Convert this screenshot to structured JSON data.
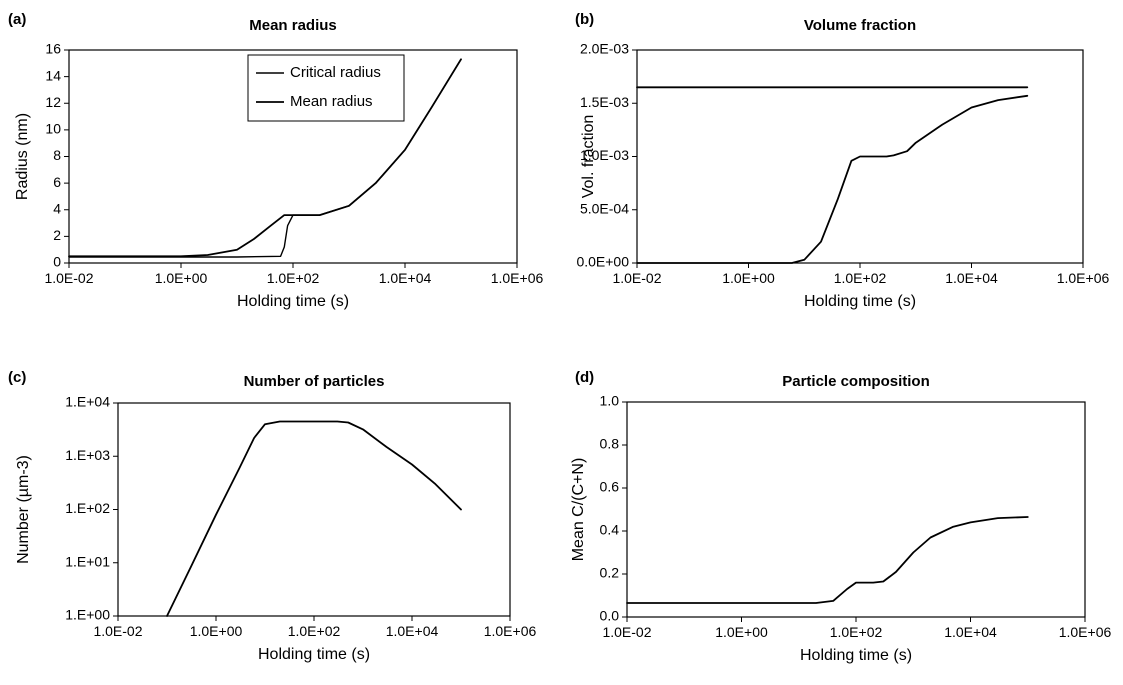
{
  "chart_data": [
    {
      "panel": "(a)",
      "type": "line",
      "title": "Mean radius",
      "xlabel": "Holding time (s)",
      "ylabel": "Radius (nm)",
      "xscale": "log",
      "xlim": [
        0.01,
        1000000
      ],
      "ylim": [
        0,
        16
      ],
      "x_ticks": [
        0.01,
        1,
        100,
        10000,
        1000000
      ],
      "x_tick_labels": [
        "1.0E-02",
        "1.0E+00",
        "1.0E+02",
        "1.0E+04",
        "1.0E+06"
      ],
      "y_ticks": [
        0,
        2,
        4,
        6,
        8,
        10,
        12,
        14,
        16
      ],
      "y_tick_labels": [
        "0",
        "2",
        "4",
        "6",
        "8",
        "10",
        "12",
        "14",
        "16"
      ],
      "grid": false,
      "legend_position": "top-center",
      "series": [
        {
          "name": "Critical radius",
          "x": [
            0.01,
            10,
            60,
            70,
            80,
            100,
            300,
            1000,
            3000,
            10000,
            30000,
            100000
          ],
          "y": [
            0.45,
            0.45,
            0.5,
            1.2,
            2.8,
            3.6,
            3.6,
            4.3,
            6.0,
            8.5,
            11.7,
            15.3
          ]
        },
        {
          "name": "Mean radius",
          "x": [
            0.01,
            1,
            3,
            10,
            20,
            40,
            70,
            100,
            300,
            1000,
            3000,
            10000,
            30000,
            100000
          ],
          "y": [
            0.5,
            0.5,
            0.6,
            1.0,
            1.8,
            2.8,
            3.6,
            3.6,
            3.6,
            4.3,
            6.0,
            8.5,
            11.7,
            15.3
          ]
        }
      ]
    },
    {
      "panel": "(b)",
      "type": "line",
      "title": "Volume fraction",
      "xlabel": "Holding time (s)",
      "ylabel": "Vol. fraction",
      "xscale": "log",
      "xlim": [
        0.01,
        1000000
      ],
      "ylim": [
        0,
        0.002
      ],
      "x_ticks": [
        0.01,
        1,
        100,
        10000,
        1000000
      ],
      "x_tick_labels": [
        "1.0E-02",
        "1.0E+00",
        "1.0E+02",
        "1.0E+04",
        "1.0E+06"
      ],
      "y_ticks": [
        0,
        0.0005,
        0.001,
        0.0015,
        0.002
      ],
      "y_tick_labels": [
        "0.0E+00",
        "5.0E-04",
        "1.0E-03",
        "1.5E-03",
        "2.0E-03"
      ],
      "grid": false,
      "series": [
        {
          "x": [
            0.01,
            100000
          ],
          "y": [
            0.00165,
            0.00165
          ]
        },
        {
          "x": [
            0.01,
            6,
            10,
            20,
            40,
            70,
            100,
            200,
            300,
            400,
            700,
            1000,
            3000,
            10000,
            30000,
            100000
          ],
          "y": [
            0,
            0,
            3e-05,
            0.0002,
            0.0006,
            0.00096,
            0.001,
            0.001,
            0.001,
            0.00101,
            0.00105,
            0.00113,
            0.0013,
            0.00146,
            0.00153,
            0.00157
          ]
        }
      ]
    },
    {
      "panel": "(c)",
      "type": "line",
      "title": "Number of particles",
      "xlabel": "Holding time (s)",
      "ylabel": "Number (µm-3)",
      "xscale": "log",
      "yscale": "log",
      "xlim": [
        0.01,
        1000000
      ],
      "ylim": [
        1,
        10000
      ],
      "x_ticks": [
        0.01,
        1,
        100,
        10000,
        1000000
      ],
      "x_tick_labels": [
        "1.0E-02",
        "1.0E+00",
        "1.0E+02",
        "1.0E+04",
        "1.0E+06"
      ],
      "y_ticks": [
        1,
        10,
        100,
        1000,
        10000
      ],
      "y_tick_labels": [
        "1.E+00",
        "1.E+01",
        "1.E+02",
        "1.E+03",
        "1.E+04"
      ],
      "grid": false,
      "series": [
        {
          "x": [
            0.1,
            0.3,
            1,
            3,
            6,
            10,
            20,
            100,
            300,
            500,
            1000,
            3000,
            10000,
            30000,
            100000
          ],
          "y": [
            1,
            8,
            80,
            600,
            2200,
            4000,
            4500,
            4500,
            4500,
            4300,
            3200,
            1500,
            700,
            300,
            100
          ]
        }
      ]
    },
    {
      "panel": "(d)",
      "type": "line",
      "title": "Particle composition",
      "xlabel": "Holding time (s)",
      "ylabel": "Mean C/(C+N)",
      "xscale": "log",
      "xlim": [
        0.01,
        1000000
      ],
      "ylim": [
        0,
        1
      ],
      "x_ticks": [
        0.01,
        1,
        100,
        10000,
        1000000
      ],
      "x_tick_labels": [
        "1.0E-02",
        "1.0E+00",
        "1.0E+02",
        "1.0E+04",
        "1.0E+06"
      ],
      "y_ticks": [
        0,
        0.2,
        0.4,
        0.6,
        0.8,
        1
      ],
      "y_tick_labels": [
        "0.0",
        "0.2",
        "0.4",
        "0.6",
        "0.8",
        "1.0"
      ],
      "grid": false,
      "series": [
        {
          "x": [
            0.01,
            20,
            40,
            70,
            100,
            200,
            300,
            500,
            1000,
            2000,
            5000,
            10000,
            30000,
            100000
          ],
          "y": [
            0.065,
            0.065,
            0.075,
            0.13,
            0.16,
            0.16,
            0.165,
            0.21,
            0.3,
            0.37,
            0.42,
            0.44,
            0.46,
            0.465
          ]
        }
      ]
    }
  ]
}
